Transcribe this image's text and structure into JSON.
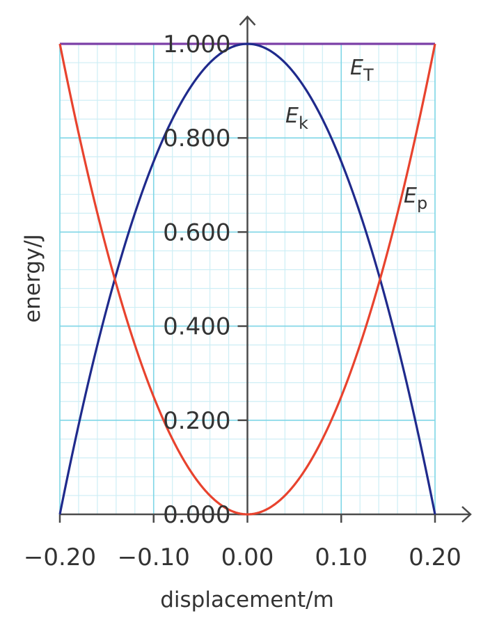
{
  "chart_data": {
    "type": "line",
    "xlabel": "displacement/m",
    "ylabel": "energy/J",
    "xlim": [
      -0.2,
      0.2
    ],
    "ylim": [
      0.0,
      1.0
    ],
    "x_ticks": [
      "−0.20",
      "−0.10",
      "0.00",
      "0.10",
      "0.20"
    ],
    "x_tick_values": [
      -0.2,
      -0.1,
      0.0,
      0.1,
      0.2
    ],
    "y_ticks": [
      "0.000",
      "0.200",
      "0.400",
      "0.600",
      "0.800",
      "1.000"
    ],
    "y_tick_values": [
      0.0,
      0.2,
      0.4,
      0.6,
      0.8,
      1.0
    ],
    "grid": true,
    "series": [
      {
        "id": "total",
        "name": "E",
        "subscript": "T",
        "color": "#7b3fa6",
        "x": [
          -0.2,
          -0.1,
          0.0,
          0.1,
          0.2
        ],
        "y": [
          1.0,
          1.0,
          1.0,
          1.0,
          1.0
        ]
      },
      {
        "id": "kinetic",
        "name": "E",
        "subscript": "k",
        "color": "#1f2a8c",
        "x": [
          -0.2,
          -0.15,
          -0.1,
          -0.05,
          0.0,
          0.05,
          0.1,
          0.15,
          0.2
        ],
        "y": [
          0.0,
          0.4375,
          0.75,
          0.9375,
          1.0,
          0.9375,
          0.75,
          0.4375,
          0.0
        ]
      },
      {
        "id": "potential",
        "name": "E",
        "subscript": "p",
        "color": "#e8432e",
        "x": [
          -0.2,
          -0.15,
          -0.1,
          -0.05,
          0.0,
          0.05,
          0.1,
          0.15,
          0.2
        ],
        "y": [
          1.0,
          0.5625,
          0.25,
          0.0625,
          0.0,
          0.0625,
          0.25,
          0.5625,
          1.0
        ]
      }
    ]
  }
}
